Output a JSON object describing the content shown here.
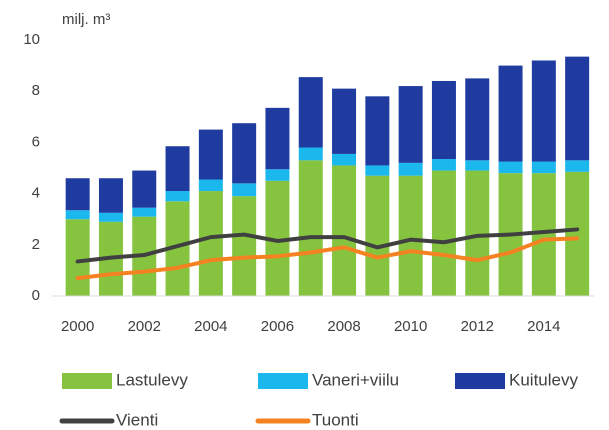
{
  "chart_data": {
    "type": "bar",
    "stacked": true,
    "y_label": "milj. m³",
    "categories": [
      "2000",
      null,
      "2002",
      null,
      "2004",
      null,
      "2006",
      null,
      "2008",
      null,
      "2010",
      null,
      "2012",
      null,
      "2014",
      null
    ],
    "series": [
      {
        "name": "Lastulevy",
        "color": "#86c440",
        "values": [
          3.0,
          2.9,
          3.1,
          3.7,
          4.1,
          3.9,
          4.5,
          5.3,
          5.1,
          4.7,
          4.7,
          4.9,
          4.9,
          4.8,
          4.8,
          4.85
        ]
      },
      {
        "name": "Vaneri+viilu",
        "color": "#1ab8ec",
        "values": [
          0.35,
          0.35,
          0.35,
          0.4,
          0.45,
          0.5,
          0.45,
          0.5,
          0.45,
          0.4,
          0.5,
          0.45,
          0.4,
          0.45,
          0.45,
          0.45
        ]
      },
      {
        "name": "Kuitulevy",
        "color": "#1f3b9f",
        "values": [
          1.25,
          1.35,
          1.45,
          1.75,
          1.95,
          2.35,
          2.4,
          2.75,
          2.55,
          2.7,
          3.0,
          3.05,
          3.2,
          3.75,
          3.95,
          4.05
        ]
      },
      {
        "name": "Vienti",
        "type": "line",
        "color": "#404040",
        "values": [
          1.35,
          1.5,
          1.6,
          1.95,
          2.3,
          2.4,
          2.15,
          2.3,
          2.3,
          1.9,
          2.2,
          2.1,
          2.35,
          2.4,
          2.5,
          2.6
        ]
      },
      {
        "name": "Tuonti",
        "type": "line",
        "color": "#f58220",
        "values": [
          0.7,
          0.85,
          0.95,
          1.1,
          1.4,
          1.5,
          1.55,
          1.7,
          1.9,
          1.5,
          1.75,
          1.6,
          1.4,
          1.7,
          2.2,
          2.25
        ]
      }
    ],
    "ylim": [
      0,
      10
    ],
    "yticks": [
      0,
      2,
      4,
      6,
      8,
      10
    ],
    "grid": false,
    "legend": "bottom"
  }
}
